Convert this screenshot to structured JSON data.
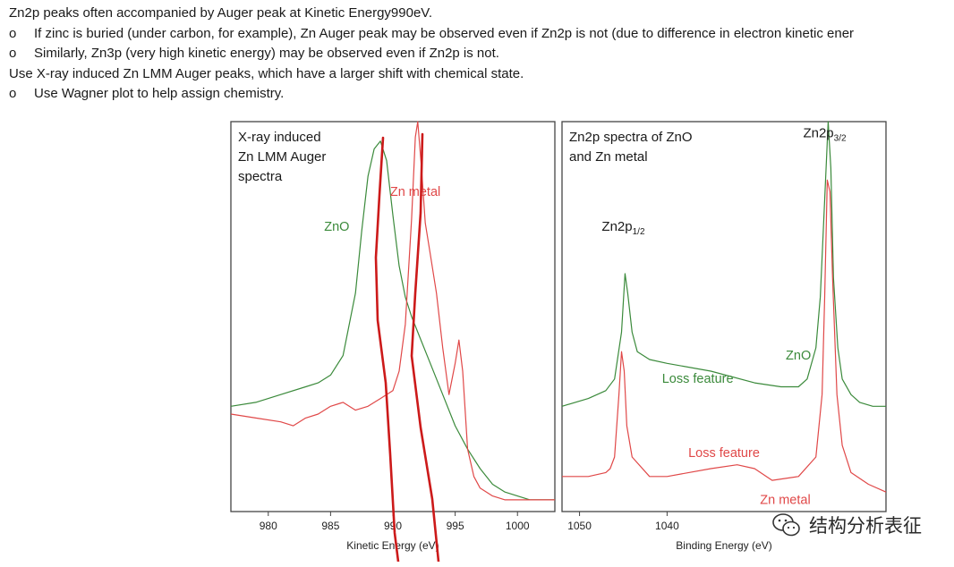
{
  "bullets": [
    {
      "marker": "",
      "indent": false,
      "text": "Zn2p peaks often accompanied by Auger peak at Kinetic Energy990eV."
    },
    {
      "marker": "o",
      "indent": true,
      "text": "If zinc is buried (under carbon, for example), Zn Auger peak may be observed even if Zn2p is not (due to difference in electron kinetic ener"
    },
    {
      "marker": "o",
      "indent": true,
      "text": "Similarly, Zn3p (very high kinetic energy) may be observed even if Zn2p is not."
    },
    {
      "marker": "",
      "indent": false,
      "text": "Use X-ray induced Zn LMM Auger peaks, which have a larger shift with chemical state."
    },
    {
      "marker": "o",
      "indent": true,
      "text": "Use Wagner plot to help assign chemistry."
    }
  ],
  "colors": {
    "zno": "#3b8a3b",
    "zn_metal": "#e04848",
    "hand_drawn": "#cc1a1a",
    "frame": "#444444"
  },
  "chart_data": [
    {
      "type": "line",
      "title_lines": [
        "X-ray induced",
        "Zn LMM Auger",
        "spectra"
      ],
      "xlabel": "Kinetic Energy (eV)",
      "xlim": [
        977,
        1003
      ],
      "ylim": [
        0,
        100
      ],
      "xticks": [
        980,
        985,
        990,
        995,
        1000
      ],
      "grid": false,
      "series": [
        {
          "name": "ZnO",
          "color": "#3b8a3b",
          "x": [
            977,
            979,
            981,
            983,
            984,
            985,
            986,
            987,
            987.5,
            988,
            988.5,
            989,
            989.5,
            990,
            990.5,
            991,
            991.5,
            992,
            993,
            994,
            995,
            996,
            997,
            998,
            999,
            1000,
            1001,
            1002,
            1003
          ],
          "y": [
            27,
            28,
            30,
            32,
            33,
            35,
            40,
            56,
            72,
            86,
            93,
            95,
            90,
            76,
            63,
            55,
            50,
            46,
            38,
            30,
            22,
            16,
            11,
            7,
            5,
            4,
            3,
            3,
            3
          ]
        },
        {
          "name": "Zn metal",
          "color": "#e04848",
          "x": [
            977,
            979,
            981,
            982,
            983,
            984,
            985,
            986,
            987,
            988,
            989,
            990,
            990.5,
            991,
            991.5,
            991.8,
            992,
            992.3,
            992.6,
            993,
            993.5,
            994,
            994.5,
            995,
            995.3,
            995.6,
            996,
            996.5,
            997,
            998,
            999,
            1000,
            1001,
            1002,
            1003
          ],
          "y": [
            25,
            24,
            23,
            22,
            24,
            25,
            27,
            28,
            26,
            27,
            29,
            31,
            36,
            48,
            75,
            96,
            100,
            88,
            74,
            66,
            56,
            42,
            30,
            38,
            44,
            36,
            16,
            9,
            6,
            4,
            3,
            3,
            3,
            3,
            3
          ]
        }
      ],
      "annotations": [
        {
          "text": "ZnO",
          "x": 985.5,
          "y": 72,
          "color": "#3b8a3b"
        },
        {
          "text": "Zn metal",
          "x": 991.8,
          "y": 81,
          "color": "#e04848"
        }
      ]
    },
    {
      "type": "line",
      "title_lines": [
        "Zn2p spectra of ZnO",
        "and Zn metal"
      ],
      "xlabel": "Binding Energy (eV)",
      "xlim": [
        1052,
        1015
      ],
      "ylim": [
        0,
        100
      ],
      "xticks": [
        1050,
        1040
      ],
      "grid": false,
      "series": [
        {
          "name": "ZnO",
          "color": "#3b8a3b",
          "x": [
            1052,
            1049,
            1047,
            1046,
            1045.2,
            1044.8,
            1044.5,
            1044,
            1043.4,
            1042,
            1040,
            1035,
            1030,
            1027,
            1025,
            1024,
            1023,
            1022.5,
            1022,
            1021.6,
            1021.3,
            1021,
            1020.5,
            1020,
            1019,
            1018,
            1016.5,
            1015
          ],
          "y": [
            27,
            29,
            31,
            34,
            46,
            61,
            56,
            46,
            41,
            39,
            38,
            36,
            33,
            32,
            32,
            34,
            42,
            55,
            80,
            100,
            88,
            60,
            42,
            34,
            30,
            28,
            27,
            27
          ]
        },
        {
          "name": "Zn metal",
          "color": "#e04848",
          "x": [
            1052,
            1049,
            1047,
            1046.5,
            1046,
            1045.5,
            1045.2,
            1044.9,
            1044.6,
            1044,
            1042,
            1040,
            1035,
            1032,
            1030,
            1028,
            1025,
            1023,
            1022.3,
            1022,
            1021.7,
            1021.4,
            1021.1,
            1020.6,
            1020,
            1019,
            1017,
            1015
          ],
          "y": [
            9,
            9,
            10,
            11,
            14,
            30,
            41,
            36,
            22,
            14,
            9,
            9,
            11,
            12,
            11,
            8,
            9,
            14,
            30,
            55,
            85,
            82,
            60,
            30,
            17,
            10,
            7,
            5
          ]
        }
      ],
      "annotations": [
        {
          "text": "ZnO",
          "x": 1025,
          "y": 39,
          "color": "#3b8a3b"
        },
        {
          "text": "Loss feature",
          "x": 1036.5,
          "y": 33,
          "color": "#3b8a3b"
        },
        {
          "text": "Loss feature",
          "x": 1033.5,
          "y": 14,
          "color": "#e04848"
        },
        {
          "text": "Zn metal",
          "x": 1026.5,
          "y": 2,
          "color": "#e04848"
        }
      ],
      "peak_labels": [
        {
          "main": "Zn2p",
          "sub": "1/2",
          "x": 1045,
          "y": 72
        },
        {
          "main": "Zn2p",
          "sub": "3/2",
          "x": 1022,
          "y": 96
        }
      ]
    }
  ],
  "watermark": {
    "text": "结构分析表征",
    "icon": "wechat-icon"
  }
}
